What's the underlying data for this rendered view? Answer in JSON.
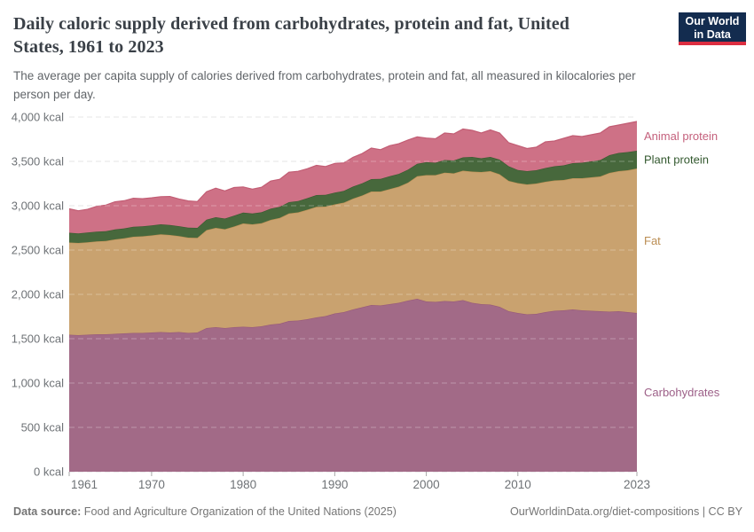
{
  "header": {
    "title_line1": "Daily caloric supply derived from carbohydrates, protein and fat, United",
    "title_line2": "States, 1961 to 2023",
    "subtitle": "The average per capita supply of calories derived from carbohydrates, protein and fat, all measured in kilocalories per person per day.",
    "logo": {
      "line1": "Our World",
      "line2": "in Data",
      "bg_color": "#132c4f",
      "accent_color": "#dc2e41"
    }
  },
  "footer": {
    "datasource_label": "Data source:",
    "datasource_text": " Food and Agriculture Organization of the United Nations (2025)",
    "credit": "OurWorldinData.org/diet-compositions | CC BY"
  },
  "chart_data": {
    "type": "area",
    "stacked": true,
    "title": "Daily caloric supply derived from carbohydrates, protein and fat, United States, 1961 to 2023",
    "unit": "kcal",
    "grid": "dashed",
    "legend_position": "right-of-plot",
    "x_start": 1961,
    "x_end": 2023,
    "ylim": [
      0,
      4000
    ],
    "y_ticks": [
      {
        "v": 0,
        "label": "0 kcal"
      },
      {
        "v": 500,
        "label": "500 kcal"
      },
      {
        "v": 1000,
        "label": "1,000 kcal"
      },
      {
        "v": 1500,
        "label": "1,500 kcal"
      },
      {
        "v": 2000,
        "label": "2,000 kcal"
      },
      {
        "v": 2500,
        "label": "2,500 kcal"
      },
      {
        "v": 3000,
        "label": "3,000 kcal"
      },
      {
        "v": 3500,
        "label": "3,500 kcal"
      },
      {
        "v": 4000,
        "label": "4,000 kcal"
      }
    ],
    "x_ticks": [
      {
        "v": 1961,
        "label": "1961"
      },
      {
        "v": 1970,
        "label": "1970"
      },
      {
        "v": 1980,
        "label": "1980"
      },
      {
        "v": 1990,
        "label": "1990"
      },
      {
        "v": 2000,
        "label": "2000"
      },
      {
        "v": 2010,
        "label": "2010"
      },
      {
        "v": 2023,
        "label": "2023"
      }
    ],
    "series": [
      {
        "name": "Carbohydrates",
        "color": "#a26a87",
        "line_color": "#97597a",
        "label_color": "#9d6088",
        "values": [
          1545,
          1540,
          1545,
          1550,
          1550,
          1555,
          1560,
          1565,
          1565,
          1570,
          1575,
          1570,
          1575,
          1565,
          1570,
          1620,
          1630,
          1620,
          1630,
          1635,
          1630,
          1640,
          1660,
          1670,
          1700,
          1705,
          1720,
          1740,
          1755,
          1785,
          1800,
          1830,
          1855,
          1880,
          1875,
          1890,
          1905,
          1930,
          1950,
          1920,
          1915,
          1925,
          1920,
          1935,
          1905,
          1890,
          1885,
          1860,
          1810,
          1790,
          1775,
          1780,
          1800,
          1815,
          1820,
          1830,
          1820,
          1815,
          1810,
          1805,
          1810,
          1800,
          1790
        ]
      },
      {
        "name": "Fat",
        "color": "#c9a26f",
        "line_color": "#bd9257",
        "label_color": "#bb8e54",
        "values": [
          1040,
          1040,
          1042,
          1048,
          1052,
          1065,
          1072,
          1085,
          1090,
          1095,
          1102,
          1100,
          1082,
          1075,
          1068,
          1105,
          1120,
          1115,
          1135,
          1165,
          1160,
          1162,
          1180,
          1192,
          1212,
          1220,
          1235,
          1248,
          1235,
          1230,
          1235,
          1250,
          1260,
          1280,
          1285,
          1298,
          1310,
          1330,
          1382,
          1425,
          1430,
          1448,
          1445,
          1460,
          1480,
          1490,
          1505,
          1495,
          1470,
          1465,
          1465,
          1470,
          1470,
          1470,
          1470,
          1480,
          1490,
          1505,
          1520,
          1565,
          1580,
          1600,
          1630
        ]
      },
      {
        "name": "Plant protein",
        "color": "#47683c",
        "line_color": "#3a5a30",
        "label_color": "#33592f",
        "values": [
          110,
          108,
          110,
          110,
          110,
          112,
          112,
          112,
          112,
          112,
          113,
          112,
          112,
          112,
          112,
          118,
          120,
          120,
          122,
          122,
          122,
          124,
          126,
          126,
          128,
          128,
          130,
          132,
          132,
          132,
          133,
          136,
          138,
          140,
          142,
          144,
          144,
          146,
          140,
          146,
          140,
          142,
          145,
          150,
          165,
          155,
          160,
          165,
          165,
          148,
          150,
          150,
          155,
          160,
          165,
          170,
          175,
          180,
          185,
          200,
          205,
          205,
          200
        ]
      },
      {
        "name": "Animal protein",
        "color": "#ce7186",
        "line_color": "#c25d74",
        "label_color": "#c4607c",
        "values": [
          270,
          255,
          262,
          285,
          295,
          312,
          312,
          322,
          312,
          312,
          312,
          322,
          307,
          302,
          297,
          315,
          328,
          312,
          318,
          290,
          275,
          282,
          312,
          310,
          338,
          335,
          332,
          335,
          320,
          330,
          315,
          330,
          335,
          350,
          330,
          345,
          340,
          335,
          304,
          272,
          270,
          305,
          300,
          320,
          300,
          285,
          305,
          300,
          265,
          275,
          255,
          260,
          295,
          285,
          305,
          310,
          295,
          300,
          305,
          320,
          315,
          325,
          330
        ]
      }
    ],
    "plot": {
      "x_left": 78,
      "x_right": 718,
      "y_bottom": 414,
      "y_top": 14,
      "grid_color": "#d9d9d9",
      "grid_overlay_color": "rgba(255,255,255,0.3)",
      "tick_color": "#a8a8a8",
      "axis_label_color": "#6e7276"
    }
  }
}
